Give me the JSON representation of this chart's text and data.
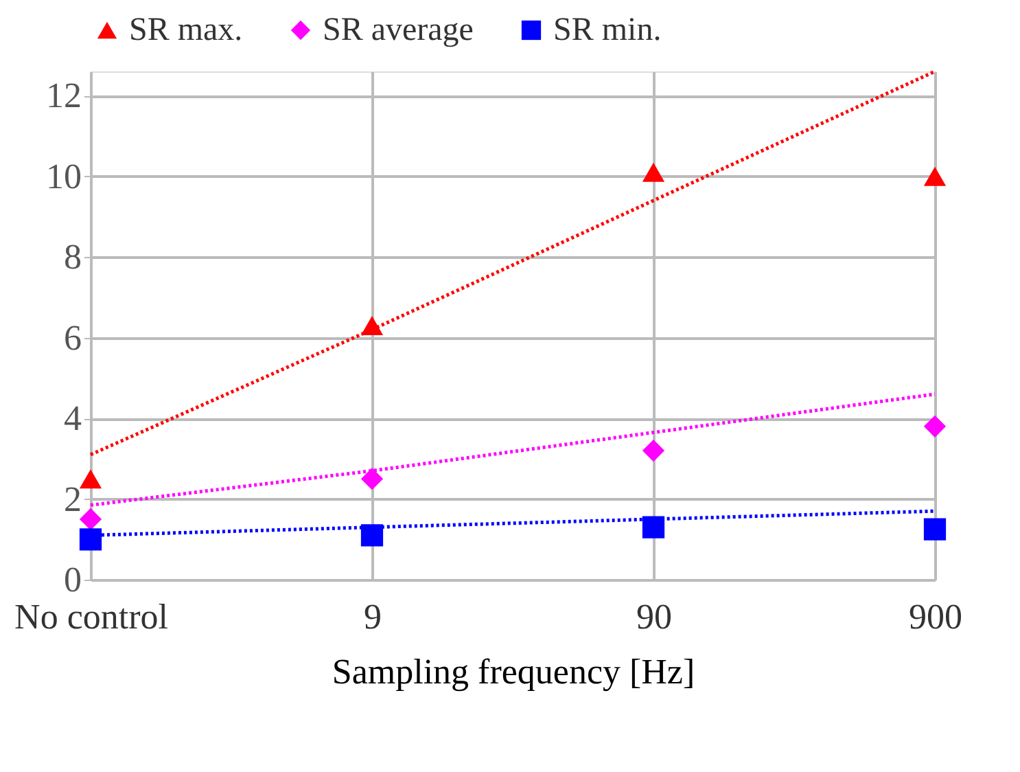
{
  "chart_data": {
    "type": "scatter",
    "xlabel": "Sampling frequency [Hz]",
    "categories": [
      "No control",
      "9",
      "90",
      "900"
    ],
    "ylim": [
      0,
      12.6
    ],
    "yticks": [
      0,
      2,
      4,
      6,
      8,
      10,
      12
    ],
    "grid": true,
    "legend": "top",
    "series": [
      {
        "name": "SR max.",
        "color": "#ff0000",
        "marker": "triangle",
        "values": [
          2.5,
          6.3,
          10.1,
          10.0
        ]
      },
      {
        "name": "SR average",
        "color": "#ff00ff",
        "marker": "diamond",
        "values": [
          1.5,
          2.5,
          3.2,
          3.8
        ]
      },
      {
        "name": "SR min.",
        "color": "#0000ff",
        "marker": "square",
        "values": [
          1.0,
          1.1,
          1.3,
          1.25
        ]
      },
      {
        "type": "line",
        "color": "#ff0000",
        "line_style": "dotted",
        "marker": "none",
        "values": [
          3.1,
          6.2,
          9.4,
          12.6
        ]
      },
      {
        "type": "line",
        "color": "#ff00ff",
        "line_style": "dotted",
        "marker": "none",
        "values": [
          1.85,
          2.7,
          3.65,
          4.6
        ]
      },
      {
        "type": "line",
        "color": "#0000ff",
        "line_style": "dotted",
        "marker": "none",
        "values": [
          1.1,
          1.3,
          1.5,
          1.7
        ]
      }
    ]
  }
}
